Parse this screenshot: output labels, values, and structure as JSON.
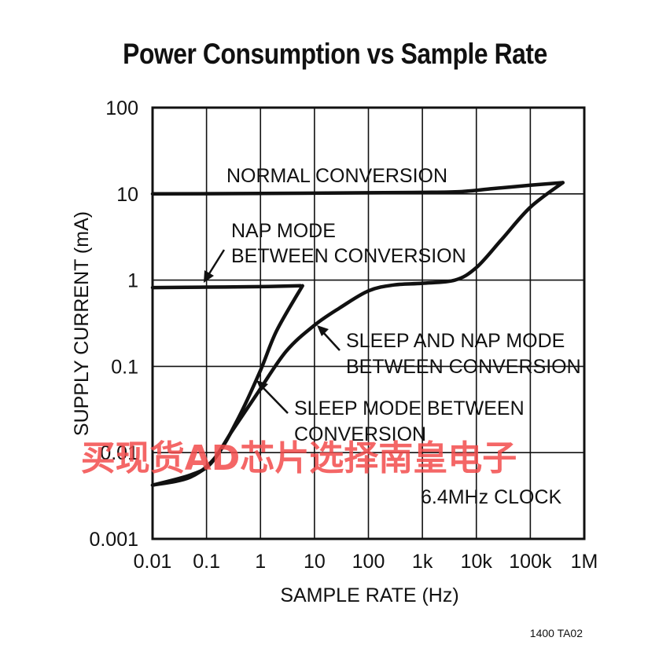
{
  "chart_data": {
    "type": "line",
    "title": "Power Consumption vs Sample Rate",
    "xlabel": "SAMPLE RATE (Hz)",
    "ylabel": "SUPPLY CURRENT (mA)",
    "xscale": "log",
    "yscale": "log",
    "xlim": [
      0.01,
      1000000
    ],
    "ylim": [
      0.001,
      100
    ],
    "xticks": [
      "0.01",
      "0.1",
      "1",
      "10",
      "100",
      "1k",
      "10k",
      "100k",
      "1M"
    ],
    "yticks": [
      "100",
      "10",
      "1",
      "0.1",
      "0.01",
      "0.001"
    ],
    "grid": true,
    "series": [
      {
        "name": "NORMAL CONVERSION",
        "x": [
          0.01,
          1,
          100,
          1000,
          5000,
          20000,
          100000,
          400000
        ],
        "y": [
          10,
          10.1,
          10.3,
          10.4,
          10.6,
          11.5,
          12.6,
          13.5
        ]
      },
      {
        "name": "NAP MODE BETWEEN CONVERSION",
        "x": [
          0.01,
          0.1,
          1,
          5.5
        ],
        "y": [
          0.82,
          0.83,
          0.84,
          0.86
        ]
      },
      {
        "name": "SLEEP AND NAP MODE BETWEEN CONVERSION",
        "x": [
          0.01,
          0.05,
          0.12,
          0.3,
          0.9,
          3,
          10,
          30,
          100,
          300,
          1000,
          4000,
          10000,
          30000,
          100000,
          400000
        ],
        "y": [
          0.0042,
          0.0055,
          0.0075,
          0.018,
          0.05,
          0.15,
          0.3,
          0.48,
          0.75,
          0.88,
          0.92,
          1.0,
          1.4,
          3,
          7,
          13.5
        ]
      },
      {
        "name": "SLEEP MODE BETWEEN CONVERSION",
        "x": [
          0.01,
          0.05,
          0.15,
          0.4,
          1,
          2,
          6
        ],
        "y": [
          0.0042,
          0.0052,
          0.009,
          0.026,
          0.09,
          0.26,
          0.86
        ]
      }
    ],
    "annotations": [
      "NORMAL CONVERSION",
      "NAP MODE",
      "BETWEEN CONVERSION",
      "SLEEP AND NAP MODE",
      "BETWEEN CONVERSION",
      "SLEEP MODE BETWEEN",
      "CONVERSION",
      "6.4MHz CLOCK"
    ],
    "figure_ref": "1400 TA02"
  },
  "watermark": "买现货AD芯片选择南皇电子",
  "colors": {
    "curve": "#111111",
    "watermark": "#f24b4b"
  }
}
